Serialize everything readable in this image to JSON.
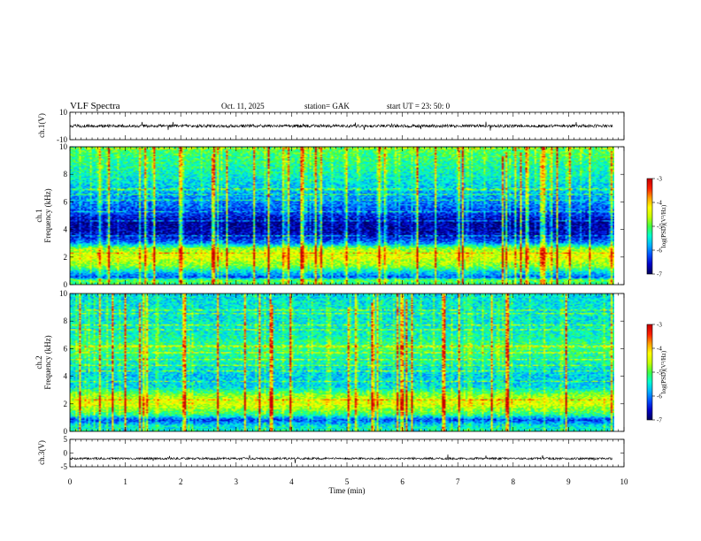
{
  "header": {
    "title": "VLF  Spectra",
    "date": "Oct. 11, 2025",
    "station": "station= GAK",
    "start": "start  UT =    23: 50: 0"
  },
  "colors": {
    "trace": "#000000",
    "colormap": [
      "#000060",
      "#0000c8",
      "#0050ff",
      "#00b4ff",
      "#00ffd0",
      "#40ff40",
      "#c8ff00",
      "#ffff00",
      "#ffa000",
      "#ff2000",
      "#c80000"
    ]
  },
  "chart_data": [
    {
      "type": "line",
      "name": "ch1-waveform",
      "ylabel": "ch.1(V)",
      "ylim": [
        -10,
        10
      ],
      "yticks": [
        10,
        -10
      ],
      "ytick_labels": [
        "10",
        "-10"
      ],
      "baseline": 0,
      "x_range_min": [
        0,
        9.8
      ]
    },
    {
      "type": "heatmap",
      "name": "ch1-spectrogram",
      "ylabel": [
        "ch.1",
        "Frequency  (kHz)"
      ],
      "ylim": [
        0,
        10
      ],
      "yticks": [
        0,
        2,
        4,
        6,
        8,
        10
      ],
      "x_range_min": [
        0,
        9.8
      ],
      "colorbar": {
        "label": "log(PSD)(V²/Hz)",
        "range": [
          -7,
          -3
        ],
        "ticks": [
          "-3",
          "-4",
          "-5",
          "-6",
          "-7"
        ]
      },
      "profile_khz": [
        {
          "f": 0.0,
          "v": -5.2
        },
        {
          "f": 0.3,
          "v": -5.0
        },
        {
          "f": 0.5,
          "v": -6.2
        },
        {
          "f": 0.9,
          "v": -5.6
        },
        {
          "f": 1.3,
          "v": -4.9
        },
        {
          "f": 2.0,
          "v": -4.4
        },
        {
          "f": 2.6,
          "v": -4.8
        },
        {
          "f": 3.0,
          "v": -6.0
        },
        {
          "f": 3.5,
          "v": -6.6
        },
        {
          "f": 4.5,
          "v": -6.8
        },
        {
          "f": 5.2,
          "v": -6.3
        },
        {
          "f": 6.0,
          "v": -6.0
        },
        {
          "f": 7.0,
          "v": -5.7
        },
        {
          "f": 8.5,
          "v": -5.3
        },
        {
          "f": 10.0,
          "v": -5.0
        }
      ]
    },
    {
      "type": "heatmap",
      "name": "ch2-spectrogram",
      "ylabel": [
        "ch.2",
        "Frequency  (kHz)"
      ],
      "ylim": [
        0,
        10
      ],
      "yticks": [
        0,
        2,
        4,
        6,
        8,
        10
      ],
      "x_range_min": [
        0,
        9.8
      ],
      "colorbar": {
        "label": "log(PSD)(V²/Hz)",
        "range": [
          -7,
          -3
        ],
        "ticks": [
          "-3",
          "-4",
          "-5",
          "-6",
          "-7"
        ]
      },
      "profile_khz": [
        {
          "f": 0.0,
          "v": -5.4
        },
        {
          "f": 0.4,
          "v": -5.6
        },
        {
          "f": 0.8,
          "v": -6.3
        },
        {
          "f": 1.2,
          "v": -5.2
        },
        {
          "f": 2.0,
          "v": -4.4
        },
        {
          "f": 2.6,
          "v": -4.8
        },
        {
          "f": 3.2,
          "v": -5.6
        },
        {
          "f": 4.0,
          "v": -5.7
        },
        {
          "f": 5.0,
          "v": -5.4
        },
        {
          "f": 6.0,
          "v": -5.1
        },
        {
          "f": 7.0,
          "v": -5.4
        },
        {
          "f": 8.0,
          "v": -5.5
        },
        {
          "f": 9.0,
          "v": -5.5
        },
        {
          "f": 10.0,
          "v": -5.6
        }
      ]
    },
    {
      "type": "line",
      "name": "ch3-waveform",
      "ylabel": "ch.3(V)",
      "ylim": [
        -5,
        5
      ],
      "yticks": [
        5,
        0,
        -5
      ],
      "ytick_labels": [
        "5",
        "0",
        "-5"
      ],
      "baseline": -2,
      "x_range_min": [
        0,
        9.8
      ]
    }
  ],
  "xaxis": {
    "label": "Time  (min)",
    "ticks": [
      "0",
      "1",
      "2",
      "3",
      "4",
      "5",
      "6",
      "7",
      "8",
      "9",
      "10"
    ],
    "xlim": [
      0,
      10
    ]
  }
}
